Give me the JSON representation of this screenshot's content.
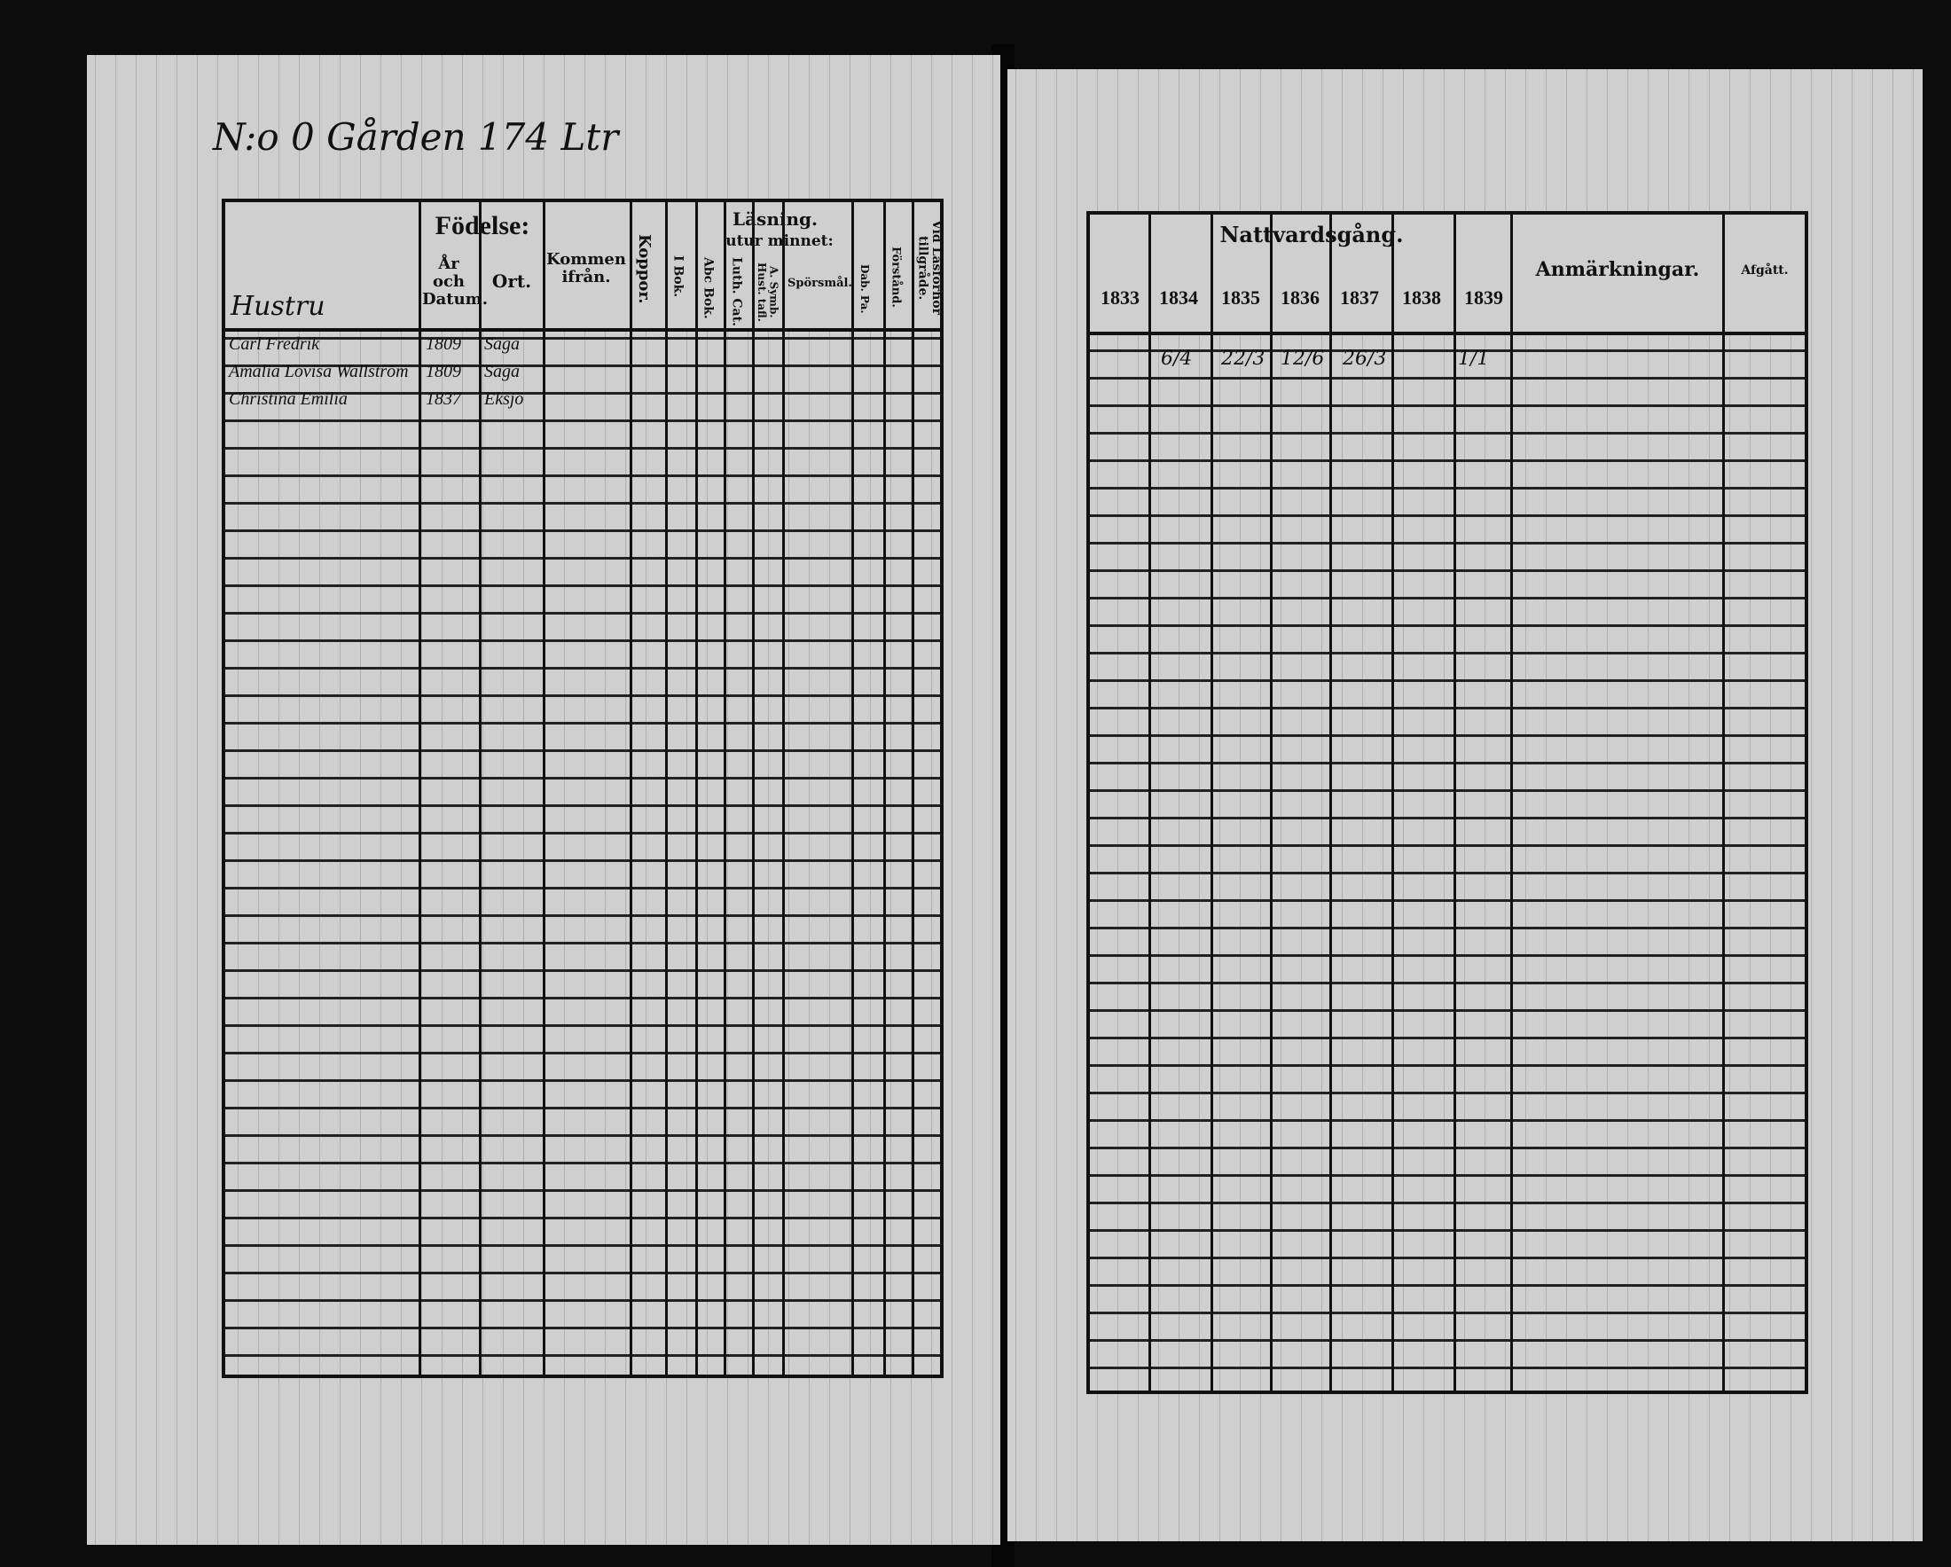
{
  "page_heading": "N:o 0 Gården 174 Ltr",
  "left": {
    "name_header": "Hustru",
    "fodelse": "Födelse:",
    "ar_datum": "År och Datum.",
    "ort": "Ort.",
    "kommen": "Kommen ifrån.",
    "koppor": "Koppor.",
    "lasning": "Läsning.",
    "i_bok": "I Bok.",
    "utur_minnet": "utur minnet:",
    "abc_bok": "Abc Bok.",
    "luth_cat": "Luth. Cat.",
    "symb": "A. Symb. Hust. tafl.",
    "sporsmal": "Spörsmål.",
    "dab": "Dab. Pa.",
    "forstand": "Förstånd.",
    "laskunskap": "Vid Läsförhör tillgråde."
  },
  "right": {
    "nattvard": "Nattvardsgång.",
    "years": [
      "1833",
      "1834",
      "1835",
      "1836",
      "1837",
      "1838",
      "1839"
    ],
    "anmarkningar": "Anmärkningar.",
    "afgatt": "Afgått."
  },
  "entries": [
    {
      "name": "Carl Fredrik",
      "year": "1809",
      "place": "Saga"
    },
    {
      "name": "Amalia Lovisa Wallström",
      "year": "1809",
      "place": "Saga"
    },
    {
      "name": "Christina Emilia",
      "year": "1837",
      "place": "Eksjö"
    }
  ],
  "communion_marks": [
    "6/4",
    "22/3",
    "12/6",
    "26/3",
    "1/1"
  ]
}
